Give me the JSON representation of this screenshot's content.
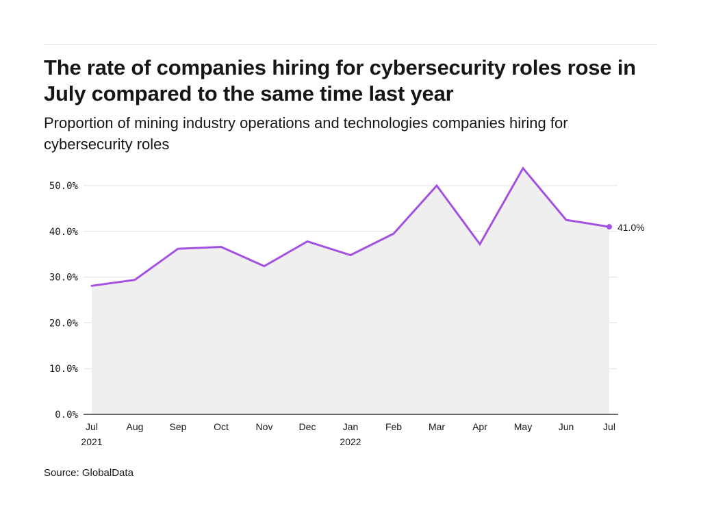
{
  "header": {
    "title": "The rate of companies hiring for cybersecurity roles rose in July compared to the same time last year",
    "subtitle": "Proportion of mining industry operations and technologies companies hiring for cybersecurity roles"
  },
  "footer": {
    "source": "Source: GlobalData"
  },
  "chart_data": {
    "type": "area",
    "title": "The rate of companies hiring for cybersecurity roles rose in July compared to the same time last year",
    "subtitle": "Proportion of mining industry operations and technologies companies hiring for cybersecurity roles",
    "xlabel": "",
    "ylabel": "",
    "x": [
      "Jul 2021",
      "Aug",
      "Sep",
      "Oct",
      "Nov",
      "Dec",
      "Jan 2022",
      "Feb",
      "Mar",
      "Apr",
      "May",
      "Jun",
      "Jul"
    ],
    "x_tick_labels": [
      [
        "Jul",
        "2021"
      ],
      [
        "Aug"
      ],
      [
        "Sep"
      ],
      [
        "Oct"
      ],
      [
        "Nov"
      ],
      [
        "Dec"
      ],
      [
        "Jan",
        "2022"
      ],
      [
        "Feb"
      ],
      [
        "Mar"
      ],
      [
        "Apr"
      ],
      [
        "May"
      ],
      [
        "Jun"
      ],
      [
        "Jul"
      ]
    ],
    "series": [
      {
        "values": [
          28.1,
          29.4,
          36.2,
          36.6,
          32.4,
          37.8,
          34.8,
          39.5,
          50.0,
          37.2,
          53.8,
          42.5,
          41.0
        ]
      }
    ],
    "ylim": [
      0,
      50
    ],
    "y_ticks": [
      0,
      10,
      20,
      30,
      40,
      50
    ],
    "y_tick_labels": [
      "0.0%",
      "10.0%",
      "20.0%",
      "30.0%",
      "40.0%",
      "50.0%"
    ],
    "end_label": "41.0%",
    "grid": true,
    "line_color": "#a251e0",
    "fill_color": "#efefef",
    "grid_color": "#e0e0e0"
  }
}
